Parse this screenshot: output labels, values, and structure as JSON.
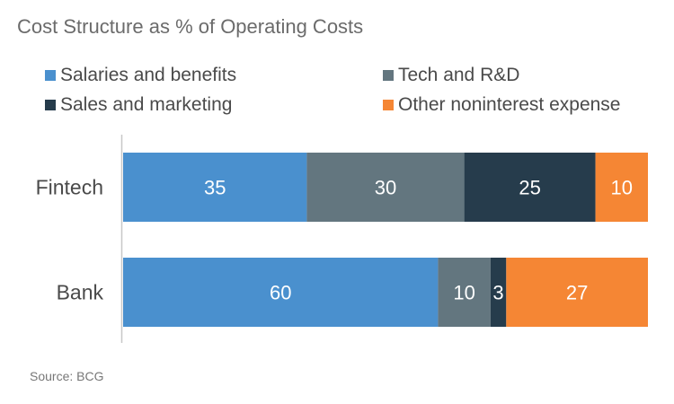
{
  "chart_data": {
    "type": "bar",
    "orientation": "horizontal",
    "stacked": true,
    "title": "Cost Structure as % of Operating Costs",
    "categories": [
      "Fintech",
      "Bank"
    ],
    "series": [
      {
        "name": "Salaries and benefits",
        "color": "#4A90CE",
        "values": [
          35,
          60
        ]
      },
      {
        "name": "Tech and R&D",
        "color": "#63767F",
        "values": [
          30,
          10
        ]
      },
      {
        "name": "Sales and marketing",
        "color": "#263C4C",
        "values": [
          25,
          3
        ]
      },
      {
        "name": "Other noninterest expense",
        "color": "#F58634",
        "values": [
          10,
          27
        ]
      }
    ],
    "xlim": [
      0,
      100
    ],
    "legend_position": "top",
    "grid": false,
    "source": "Source: BCG"
  }
}
